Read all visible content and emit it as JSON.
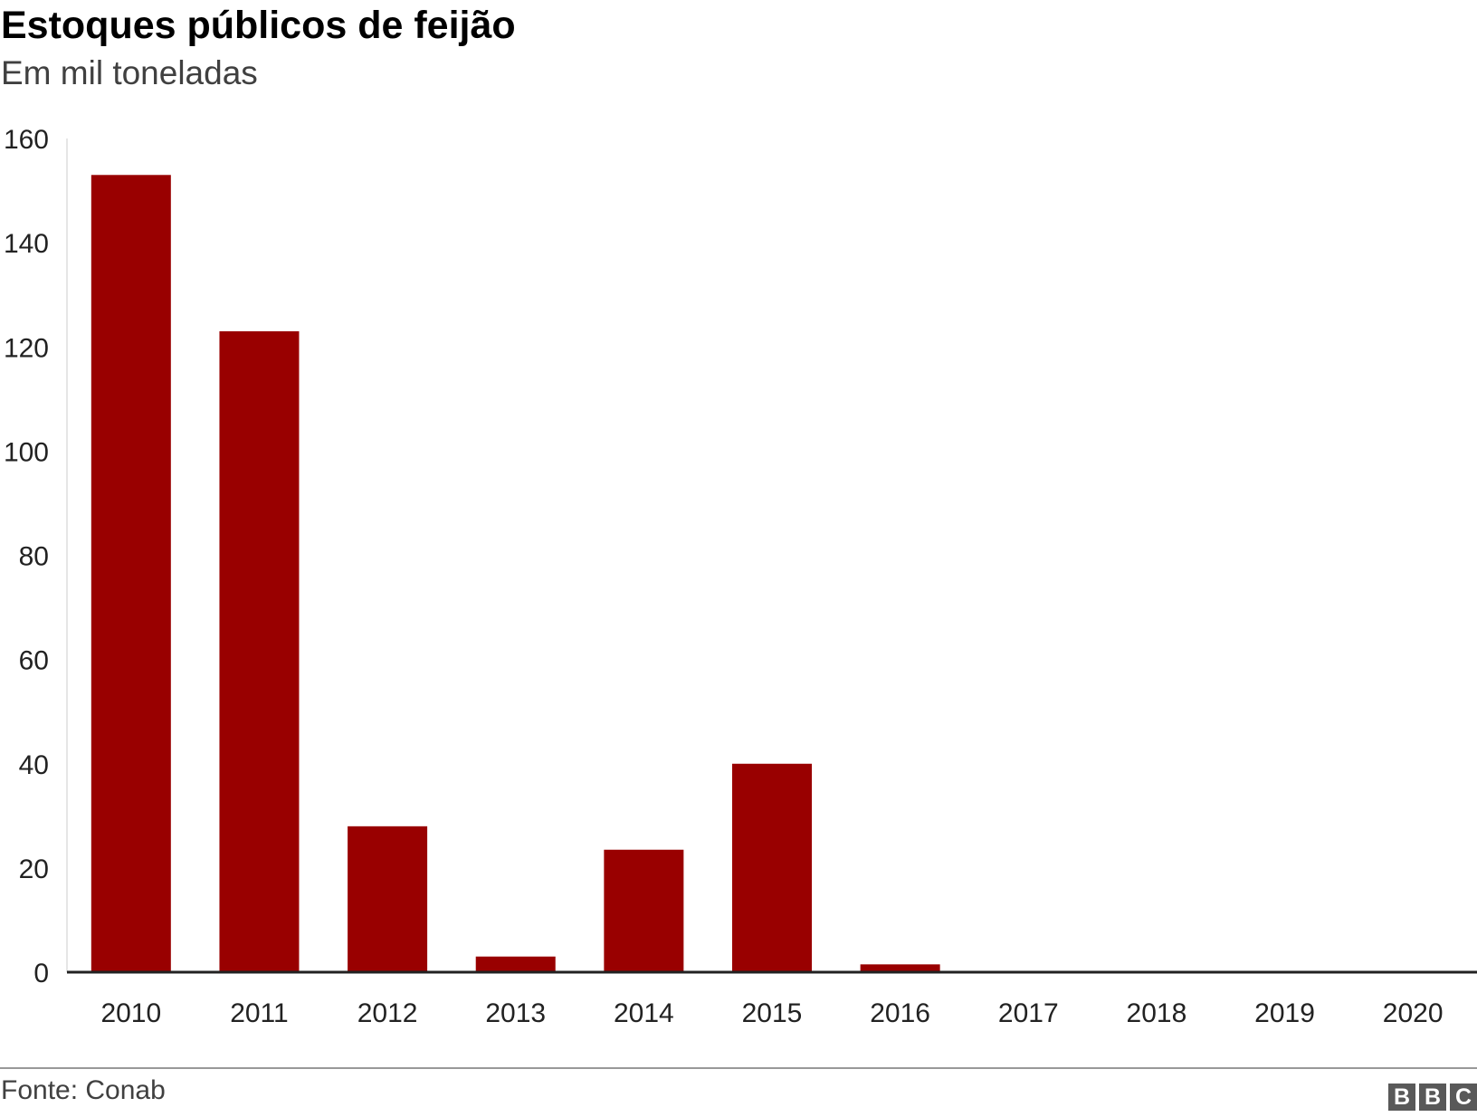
{
  "header": {
    "title": "Estoques públicos de feijão",
    "subtitle": "Em mil toneladas"
  },
  "footer": {
    "source": "Fonte: Conab",
    "logo": [
      "B",
      "B",
      "C"
    ]
  },
  "colors": {
    "bar": "#990000",
    "axis": "#222222",
    "text": "#222222"
  },
  "chart_data": {
    "type": "bar",
    "title": "Estoques públicos de feijão",
    "subtitle": "Em mil toneladas",
    "categories": [
      "2010",
      "2011",
      "2012",
      "2013",
      "2014",
      "2015",
      "2016",
      "2017",
      "2018",
      "2019",
      "2020"
    ],
    "values": [
      153,
      123,
      28,
      3,
      23.5,
      40,
      1.5,
      0,
      0,
      0,
      0
    ],
    "ylim": [
      0,
      160
    ],
    "yticks": [
      0,
      20,
      40,
      60,
      80,
      100,
      120,
      140,
      160
    ],
    "grid": false,
    "legend": "none",
    "xlabel": "",
    "ylabel": ""
  }
}
